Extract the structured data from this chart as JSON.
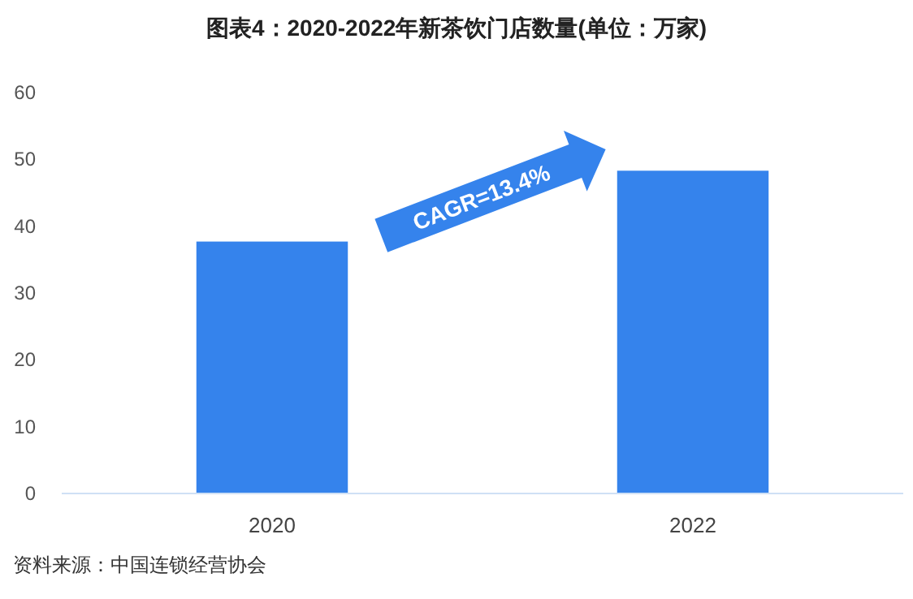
{
  "chart_data": {
    "type": "bar",
    "title": "图表4：2020-2022年新茶饮门店数量(单位：万家)",
    "categories": [
      "2020",
      "2022"
    ],
    "values": [
      37.7,
      48.3
    ],
    "color": "#3583ec",
    "ylim": [
      0,
      60
    ],
    "yticks": [
      0,
      10,
      20,
      30,
      40,
      50,
      60
    ],
    "grid": false,
    "annotations": [
      "CAGR=13.4%",
      "资料来源：中国连锁经营协会"
    ]
  }
}
